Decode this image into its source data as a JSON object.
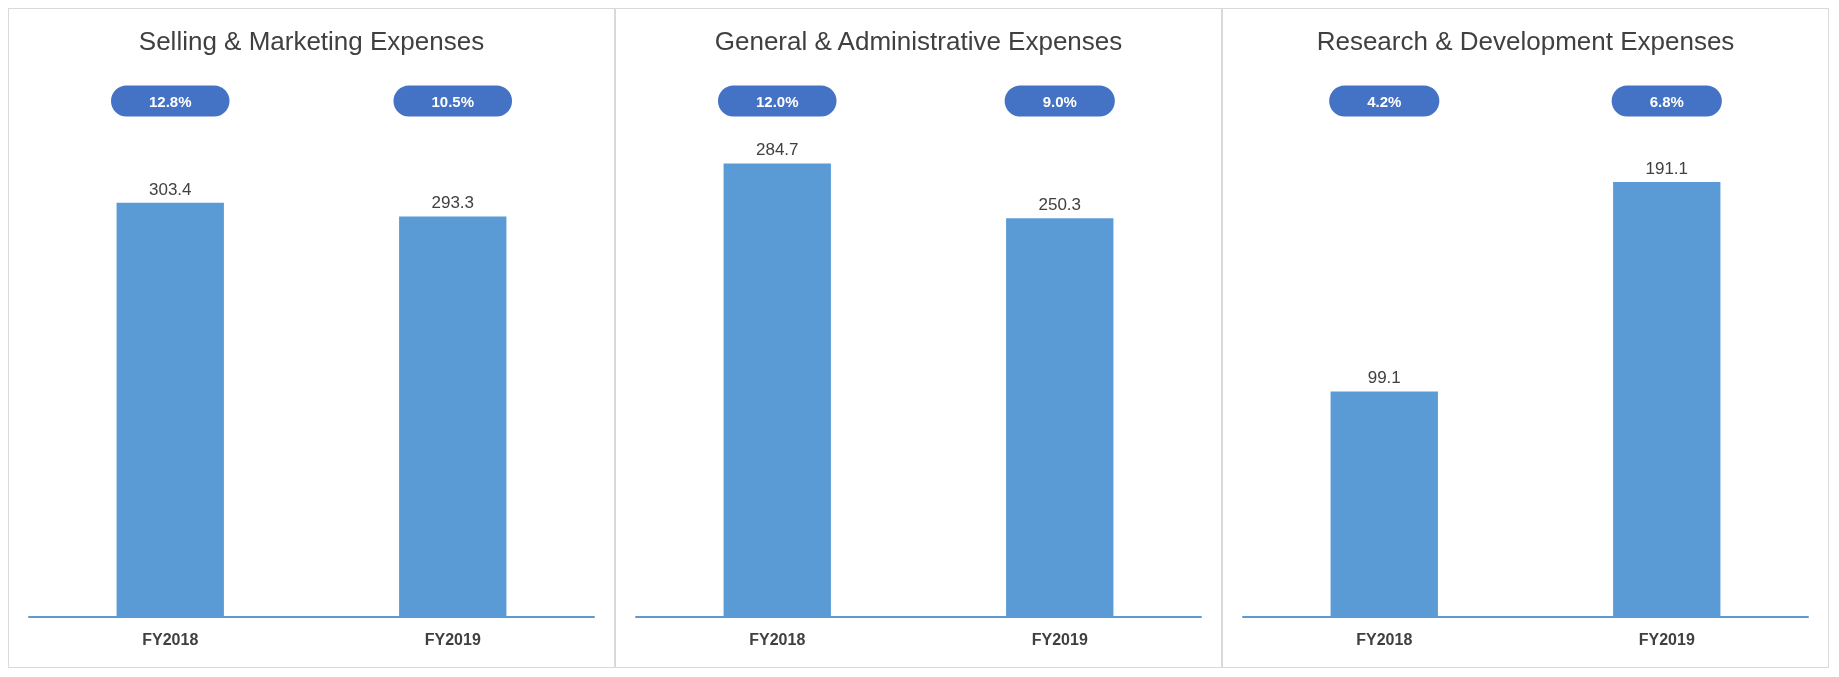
{
  "chart_data": [
    {
      "type": "bar",
      "title": "Selling & Marketing Expenses",
      "categories": [
        "FY2018",
        "FY2019"
      ],
      "values": [
        303.4,
        293.3
      ],
      "color": "#5b9bd5",
      "data_labels": true,
      "annotations": [
        "12.8%",
        "10.5%"
      ]
    },
    {
      "type": "bar",
      "title": "General & Administrative Expenses",
      "categories": [
        "FY2018",
        "FY2019"
      ],
      "values": [
        284.7,
        250.3
      ],
      "color": "#5b9bd5",
      "data_labels": true,
      "annotations": [
        "12.0%",
        "9.0%"
      ]
    },
    {
      "type": "bar",
      "title": "Research & Development Expenses",
      "categories": [
        "FY2018",
        "FY2019"
      ],
      "values": [
        99.1,
        191.1
      ],
      "color": "#5b9bd5",
      "data_labels": true,
      "annotations": [
        "4.2%",
        "6.8%"
      ]
    }
  ]
}
